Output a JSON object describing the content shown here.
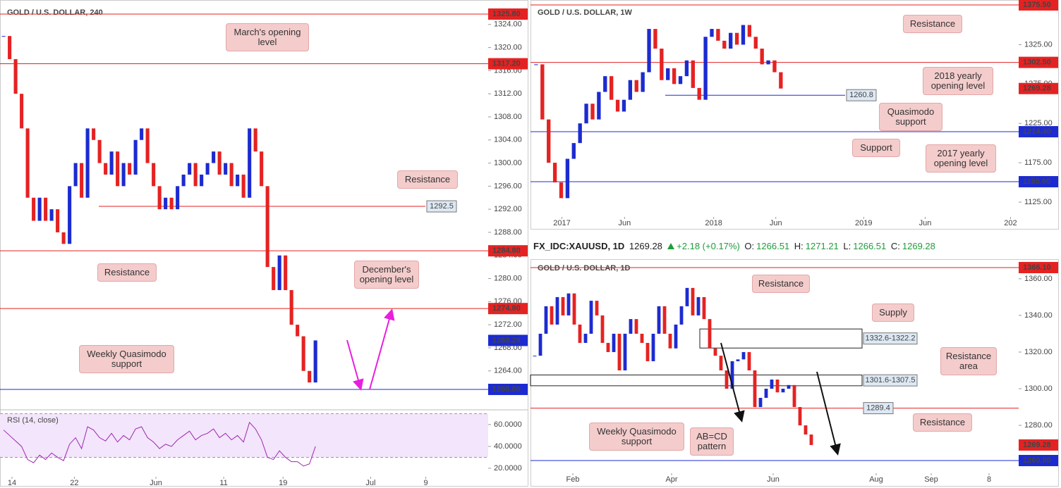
{
  "header": {
    "symbol": "FX_IDC:XAUUSD, 1D",
    "price": 1269.28,
    "change": "+2.18 (+0.17%)",
    "open_label": "O:",
    "open": 1266.51,
    "high_label": "H:",
    "high": 1271.21,
    "low_label": "L:",
    "low": 1266.51,
    "close_label": "C:",
    "close": 1269.28
  },
  "chart_data": [
    {
      "type": "candlestick",
      "title": "GOLD / U.S. DOLLAR, 240",
      "up_color": "#1c2bd0",
      "down_color": "#e52222",
      "close": [
        1322,
        1318,
        1312,
        1306,
        1294,
        1290,
        1294,
        1290,
        1292,
        1288,
        1286,
        1296,
        1300,
        1294,
        1306,
        1304,
        1300,
        1298,
        1302,
        1296,
        1300,
        1298,
        1304,
        1306,
        1300,
        1296,
        1292,
        1294,
        1292,
        1296,
        1298,
        1300,
        1296,
        1298,
        1300,
        1302,
        1298,
        1300,
        1296,
        1298,
        1294,
        1306,
        1302,
        1296,
        1282,
        1278,
        1284,
        1278,
        1272,
        1270,
        1264,
        1262,
        1269.28
      ],
      "xlim": [
        -0.6,
        80.8
      ],
      "xticks": [
        {
          "value": 1.4,
          "label": "14"
        },
        {
          "value": 11.8,
          "label": "22"
        },
        {
          "value": 25.4,
          "label": "Jun"
        },
        {
          "value": 36.7,
          "label": "11"
        },
        {
          "value": 46.6,
          "label": "19"
        },
        {
          "value": 61.2,
          "label": "Jul"
        },
        {
          "value": 70.4,
          "label": "9"
        }
      ],
      "ylim": [
        1257.26,
        1328.24
      ],
      "yticks": [
        {
          "value": 1264,
          "label": "1264.00"
        },
        {
          "value": 1268,
          "label": "1268.00"
        },
        {
          "value": 1272,
          "label": "1272.00"
        },
        {
          "value": 1276,
          "label": "1276.00"
        },
        {
          "value": 1280,
          "label": "1280.00"
        },
        {
          "value": 1284,
          "label": "1284.00"
        },
        {
          "value": 1288,
          "label": "1288.00"
        },
        {
          "value": 1292,
          "label": "1292.00"
        },
        {
          "value": 1296,
          "label": "1296.00"
        },
        {
          "value": 1300,
          "label": "1300.00"
        },
        {
          "value": 1304,
          "label": "1304.00"
        },
        {
          "value": 1308,
          "label": "1308.00"
        },
        {
          "value": 1312,
          "label": "1312.00"
        },
        {
          "value": 1316,
          "label": "1316.00"
        },
        {
          "value": 1320,
          "label": "1320.00"
        },
        {
          "value": 1324,
          "label": "1324.00"
        }
      ],
      "levels": [
        {
          "value": 1325.8,
          "label": "1325.80",
          "color": "#e52222",
          "line": true
        },
        {
          "value": 1317.2,
          "label": "1317.20",
          "color": "#e52222",
          "line": true
        },
        {
          "value": 1284.8,
          "label": "1284.80",
          "color": "#e52222",
          "line": true
        },
        {
          "value": 1274.8,
          "label": "1274.80",
          "color": "#e52222",
          "line": true
        },
        {
          "value": 1269.28,
          "label": "1269.28",
          "color": "#1c2bd0",
          "line": false
        },
        {
          "value": 1260.8,
          "label": "1260.80",
          "color": "#1c2bd0",
          "line": true
        }
      ],
      "boxed_levels": [
        {
          "value": 1292.5,
          "color": "#e52222"
        }
      ],
      "annotations": [
        "March's opening level",
        "Resistance",
        "Resistance",
        "December's opening level",
        "Weekly Quasimodo support"
      ],
      "rsi": {
        "title": "RSI (14, close)",
        "color": "#9c27b0",
        "values": [
          55,
          50,
          45,
          40,
          28,
          25,
          32,
          28,
          34,
          30,
          27,
          42,
          48,
          38,
          58,
          55,
          48,
          45,
          52,
          44,
          50,
          46,
          56,
          58,
          48,
          44,
          38,
          42,
          40,
          46,
          50,
          54,
          46,
          50,
          52,
          56,
          48,
          52,
          46,
          50,
          44,
          62,
          56,
          46,
          30,
          28,
          36,
          30,
          26,
          26,
          22,
          24,
          40
        ],
        "ylim": [
          10.3,
          73.5
        ],
        "yticks": [
          {
            "value": 20,
            "label": "20.0000"
          },
          {
            "value": 40,
            "label": "40.0000"
          },
          {
            "value": 60,
            "label": "60.0000"
          }
        ],
        "bands": [
          30,
          70
        ]
      }
    },
    {
      "type": "candlestick",
      "title": "GOLD / U.S. DOLLAR, 1W",
      "up_color": "#1c2bd0",
      "down_color": "#e52222",
      "close": [
        1300,
        1230,
        1175,
        1150,
        1130,
        1180,
        1200,
        1225,
        1250,
        1230,
        1265,
        1285,
        1255,
        1240,
        1255,
        1280,
        1265,
        1290,
        1345,
        1320,
        1280,
        1295,
        1275,
        1285,
        1305,
        1270,
        1255,
        1335,
        1345,
        1330,
        1320,
        1340,
        1325,
        1350,
        1335,
        1320,
        1300,
        1305,
        1290,
        1269.28
      ],
      "xlim": [
        -0.89,
        76.9
      ],
      "xticks": [
        {
          "value": 4.11,
          "label": "2017"
        },
        {
          "value": 14.1,
          "label": "Jun"
        },
        {
          "value": 28.3,
          "label": "2018"
        },
        {
          "value": 38.2,
          "label": "Jun"
        },
        {
          "value": 52.2,
          "label": "2019"
        },
        {
          "value": 62,
          "label": "Jun"
        },
        {
          "value": 75.6,
          "label": "202"
        }
      ],
      "ylim": [
        1106.2,
        1381.76
      ],
      "yticks": [
        {
          "value": 1125,
          "label": "1125.00"
        },
        {
          "value": 1175,
          "label": "1175.00"
        },
        {
          "value": 1225,
          "label": "1225.00"
        },
        {
          "value": 1275,
          "label": "1275.00"
        },
        {
          "value": 1325,
          "label": "1325.00"
        }
      ],
      "levels": [
        {
          "value": 1375.5,
          "label": "1375.50",
          "color": "#e52222",
          "line": true
        },
        {
          "value": 1302.5,
          "label": "1302.50",
          "color": "#e52222",
          "line": true
        },
        {
          "value": 1269.28,
          "label": "1269.28",
          "color": "#e52222",
          "line": false
        },
        {
          "value": 1214.4,
          "label": "1214.40",
          "color": "#1c2bd0",
          "line": true
        },
        {
          "value": 1150.9,
          "label": "1150.90",
          "color": "#1c2bd0",
          "line": true
        }
      ],
      "boxed_levels": [
        {
          "value": 1260.8,
          "color": "#1c2bd0"
        }
      ],
      "annotations": [
        "Resistance",
        "2018 yearly opening level",
        "Quasimodo support",
        "Support",
        "2017 yearly opening level"
      ]
    },
    {
      "type": "candlestick",
      "title": "GOLD / U.S. DOLLAR, 1D",
      "up_color": "#1c2bd0",
      "down_color": "#e52222",
      "close": [
        1318,
        1330,
        1345,
        1335,
        1350,
        1340,
        1352,
        1335,
        1325,
        1330,
        1348,
        1340,
        1325,
        1320,
        1330,
        1310,
        1330,
        1338,
        1330,
        1325,
        1315,
        1330,
        1345,
        1330,
        1322,
        1335,
        1345,
        1355,
        1340,
        1350,
        1338,
        1322,
        1318,
        1310,
        1300,
        1315,
        1316,
        1320,
        1310,
        1290,
        1295,
        1300,
        1305,
        1298,
        1300,
        1302,
        1290,
        1280,
        1275,
        1269.28
      ],
      "xlim": [
        -0.75,
        85.75
      ],
      "xticks": [
        {
          "value": 6.75,
          "label": "Feb"
        },
        {
          "value": 24.25,
          "label": "Apr"
        },
        {
          "value": 42.25,
          "label": "Jun"
        },
        {
          "value": 60.5,
          "label": "Aug"
        },
        {
          "value": 70.25,
          "label": "Sep"
        },
        {
          "value": 80.5,
          "label": "8"
        }
      ],
      "ylim": [
        1257.73,
        1369.94
      ],
      "yticks": [
        {
          "value": 1280,
          "label": "1280.00"
        },
        {
          "value": 1300,
          "label": "1300.00"
        },
        {
          "value": 1320,
          "label": "1320.00"
        },
        {
          "value": 1340,
          "label": "1340.00"
        },
        {
          "value": 1360,
          "label": "1360.00"
        }
      ],
      "levels": [
        {
          "value": 1366.1,
          "label": "1366.10",
          "color": "#e52222",
          "line": true
        },
        {
          "value": 1269.28,
          "label": "1269.28",
          "color": "#e52222",
          "line": false
        },
        {
          "value": 1260.8,
          "label": "1260.80",
          "color": "#1c2bd0",
          "line": true
        }
      ],
      "boxed_levels": [
        {
          "value": 1289.4,
          "color": "#e52222"
        }
      ],
      "zones": [
        {
          "high": 1332.6,
          "low": 1322.2,
          "label": "1332.6-1322.2"
        },
        {
          "high": 1307.5,
          "low": 1301.6,
          "label": "1301.6-1307.5"
        }
      ],
      "annotations": [
        "Resistance",
        "Supply",
        "Resistance area",
        "Resistance",
        "Weekly Quasimodo support",
        "AB=CD pattern"
      ]
    }
  ]
}
